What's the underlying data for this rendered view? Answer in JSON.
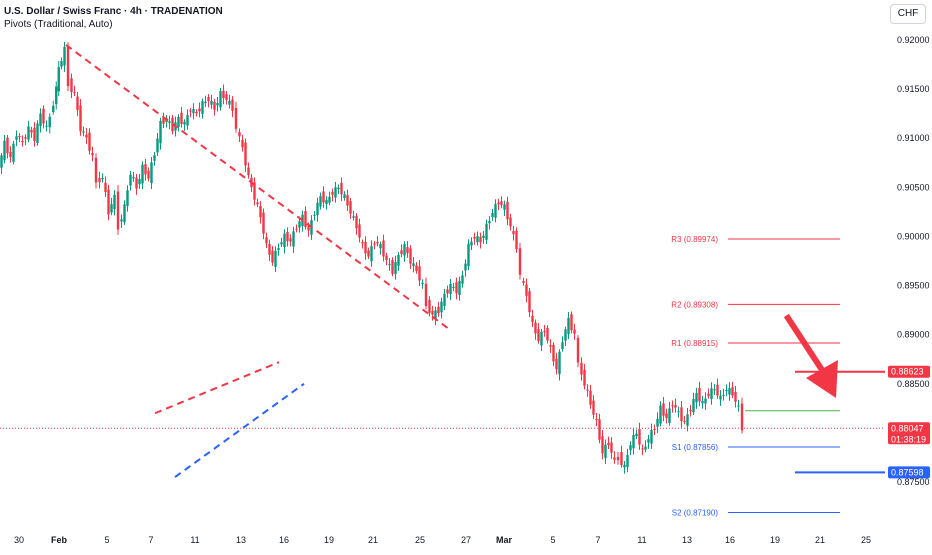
{
  "header": {
    "title": "U.S. Dollar / Swiss Franc · 4h · TRADENATION",
    "subtitle": "Pivots (Traditional, Auto)"
  },
  "currency_button": "CHF",
  "chart_data": {
    "type": "candlestick",
    "title": "U.S. Dollar / Swiss Franc · 4h · TRADENATION",
    "xlabel": "",
    "ylabel": "",
    "ylim": [
      0.8724,
      0.9225
    ],
    "x_ticks": [
      "30",
      "Feb",
      "5",
      "7",
      "11",
      "13",
      "16",
      "19",
      "21",
      "25",
      "27",
      "Mar",
      "5",
      "7",
      "11",
      "13",
      "16",
      "19",
      "21",
      "25"
    ],
    "y_ticks": [
      "0.92000",
      "0.91500",
      "0.91000",
      "0.90500",
      "0.90000",
      "0.89500",
      "0.89000",
      "0.88500",
      "0.88000",
      "0.87500"
    ],
    "price_path": [
      [
        0,
        0.907
      ],
      [
        6,
        0.9095
      ],
      [
        12,
        0.908
      ],
      [
        18,
        0.9105
      ],
      [
        24,
        0.9095
      ],
      [
        30,
        0.911
      ],
      [
        36,
        0.91
      ],
      [
        42,
        0.9125
      ],
      [
        48,
        0.911
      ],
      [
        55,
        0.9135
      ],
      [
        60,
        0.917
      ],
      [
        66,
        0.919
      ],
      [
        70,
        0.9155
      ],
      [
        76,
        0.9145
      ],
      [
        82,
        0.911
      ],
      [
        88,
        0.91
      ],
      [
        94,
        0.908
      ],
      [
        98,
        0.9055
      ],
      [
        104,
        0.906
      ],
      [
        110,
        0.9025
      ],
      [
        116,
        0.904
      ],
      [
        120,
        0.901
      ],
      [
        126,
        0.903
      ],
      [
        132,
        0.9065
      ],
      [
        138,
        0.905
      ],
      [
        144,
        0.907
      ],
      [
        150,
        0.906
      ],
      [
        156,
        0.9085
      ],
      [
        162,
        0.9115
      ],
      [
        168,
        0.912
      ],
      [
        174,
        0.911
      ],
      [
        180,
        0.912
      ],
      [
        186,
        0.9115
      ],
      [
        192,
        0.913
      ],
      [
        198,
        0.9125
      ],
      [
        204,
        0.9135
      ],
      [
        210,
        0.914
      ],
      [
        216,
        0.913
      ],
      [
        222,
        0.9145
      ],
      [
        228,
        0.914
      ],
      [
        234,
        0.913
      ],
      [
        238,
        0.911
      ],
      [
        244,
        0.909
      ],
      [
        250,
        0.906
      ],
      [
        256,
        0.904
      ],
      [
        262,
        0.902
      ],
      [
        268,
        0.899
      ],
      [
        274,
        0.8975
      ],
      [
        280,
        0.899
      ],
      [
        286,
        0.9
      ],
      [
        292,
        0.8995
      ],
      [
        298,
        0.901
      ],
      [
        304,
        0.902
      ],
      [
        310,
        0.9005
      ],
      [
        316,
        0.9025
      ],
      [
        322,
        0.904
      ],
      [
        328,
        0.9035
      ],
      [
        334,
        0.9045
      ],
      [
        340,
        0.905
      ],
      [
        346,
        0.904
      ],
      [
        352,
        0.9025
      ],
      [
        358,
        0.901
      ],
      [
        364,
        0.899
      ],
      [
        370,
        0.898
      ],
      [
        376,
        0.8995
      ],
      [
        382,
        0.899
      ],
      [
        388,
        0.8975
      ],
      [
        394,
        0.8965
      ],
      [
        400,
        0.898
      ],
      [
        406,
        0.899
      ],
      [
        412,
        0.8975
      ],
      [
        418,
        0.8965
      ],
      [
        424,
        0.895
      ],
      [
        428,
        0.893
      ],
      [
        434,
        0.892
      ],
      [
        440,
        0.8925
      ],
      [
        446,
        0.894
      ],
      [
        452,
        0.895
      ],
      [
        458,
        0.8945
      ],
      [
        464,
        0.896
      ],
      [
        470,
        0.899
      ],
      [
        476,
        0.9
      ],
      [
        482,
        0.8995
      ],
      [
        488,
        0.901
      ],
      [
        494,
        0.9025
      ],
      [
        500,
        0.9035
      ],
      [
        506,
        0.903
      ],
      [
        512,
        0.901
      ],
      [
        518,
        0.899
      ],
      [
        522,
        0.896
      ],
      [
        528,
        0.894
      ],
      [
        534,
        0.891
      ],
      [
        540,
        0.8895
      ],
      [
        546,
        0.8905
      ],
      [
        552,
        0.8885
      ],
      [
        558,
        0.8865
      ],
      [
        564,
        0.8895
      ],
      [
        570,
        0.8915
      ],
      [
        576,
        0.89
      ],
      [
        580,
        0.887
      ],
      [
        586,
        0.885
      ],
      [
        592,
        0.883
      ],
      [
        598,
        0.881
      ],
      [
        604,
        0.878
      ],
      [
        610,
        0.879
      ],
      [
        616,
        0.877
      ],
      [
        620,
        0.8775
      ],
      [
        626,
        0.8765
      ],
      [
        632,
        0.879
      ],
      [
        638,
        0.88
      ],
      [
        644,
        0.878
      ],
      [
        650,
        0.8795
      ],
      [
        656,
        0.8805
      ],
      [
        662,
        0.8825
      ],
      [
        668,
        0.8815
      ],
      [
        674,
        0.883
      ],
      [
        680,
        0.882
      ],
      [
        686,
        0.881
      ],
      [
        692,
        0.8825
      ],
      [
        698,
        0.884
      ],
      [
        704,
        0.883
      ],
      [
        710,
        0.884
      ],
      [
        716,
        0.8845
      ],
      [
        722,
        0.8835
      ],
      [
        728,
        0.8845
      ],
      [
        734,
        0.884
      ],
      [
        740,
        0.8825
      ],
      [
        744,
        0.8805
      ]
    ],
    "trendline": {
      "from": {
        "x": "Feb",
        "y": 0.9195
      },
      "to": {
        "x": "25",
        "y": 0.8905
      },
      "style": "dashed",
      "color": "#f23645"
    },
    "channel": {
      "upper": {
        "from": {
          "x": "7",
          "y": 0.882
        },
        "to": {
          "x": "16",
          "y": 0.8872
        },
        "style": "dashed",
        "color": "#f23645"
      },
      "lower": {
        "from": {
          "x": "11",
          "y": 0.8755
        },
        "to": {
          "x": "16",
          "y": 0.885
        },
        "style": "dashed",
        "color": "#2962ff"
      }
    },
    "pivots": [
      {
        "label": "R3 (0.89974)",
        "value": 0.89974,
        "color": "#f23645"
      },
      {
        "label": "R2 (0.89308)",
        "value": 0.89308,
        "color": "#f23645"
      },
      {
        "label": "R1 (0.88915)",
        "value": 0.88915,
        "color": "#f23645"
      },
      {
        "label": "",
        "value": 0.88226,
        "color": "#4caf50"
      },
      {
        "label": "S1 (0.87856)",
        "value": 0.87856,
        "color": "#2962ff"
      },
      {
        "label": "S2 (0.87190)",
        "value": 0.8719,
        "color": "#2962ff"
      }
    ],
    "horizontal_levels": [
      {
        "value": 0.88623,
        "label": "0.88623",
        "color": "#f23645"
      },
      {
        "value": 0.87598,
        "label": "0.87598",
        "color": "#2962ff"
      }
    ],
    "current_price": {
      "value": 0.88047,
      "label": "0.88047",
      "countdown": "01:38:19",
      "color": "#f23645"
    },
    "arrow": {
      "direction": "down",
      "color": "#f23645"
    },
    "colors": {
      "up": "#089981",
      "down": "#f23645"
    }
  }
}
